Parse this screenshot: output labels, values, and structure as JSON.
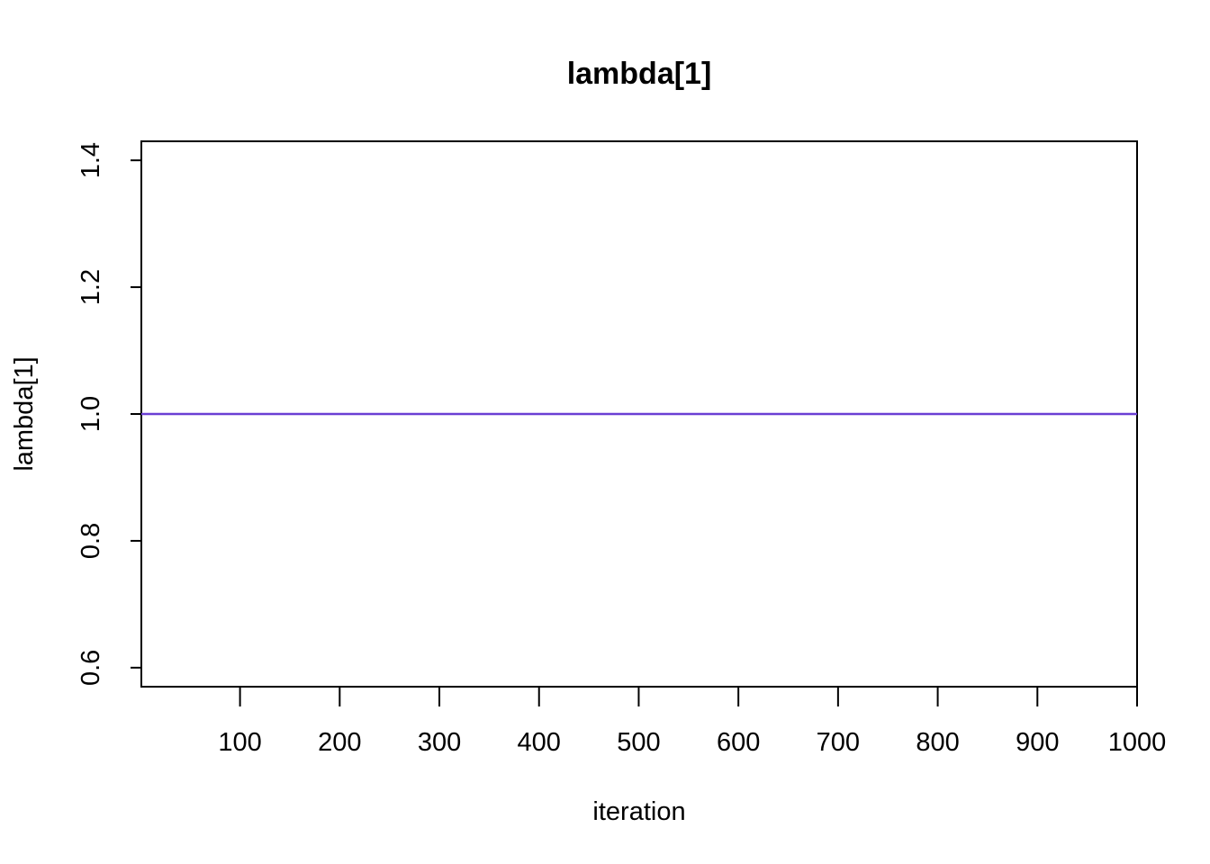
{
  "chart_data": {
    "type": "line",
    "title": "lambda[1]",
    "xlabel": "iteration",
    "ylabel": "lambda[1]",
    "xlim": [
      1,
      1000
    ],
    "ylim": [
      0.57,
      1.43
    ],
    "x_ticks": [
      100,
      200,
      300,
      400,
      500,
      600,
      700,
      800,
      900,
      1000
    ],
    "x_tick_labels": [
      "100",
      "200",
      "300",
      "400",
      "500",
      "600",
      "700",
      "800",
      "900",
      "1000"
    ],
    "y_ticks": [
      0.6,
      0.8,
      1.0,
      1.2,
      1.4
    ],
    "y_tick_labels": [
      "0.6",
      "0.8",
      "1.0",
      "1.2",
      "1.4"
    ],
    "grid": false,
    "legend": "none",
    "series": [
      {
        "color": "#6a3fd4",
        "x": [
          1,
          1000
        ],
        "y": [
          1.0,
          1.0
        ]
      }
    ]
  }
}
